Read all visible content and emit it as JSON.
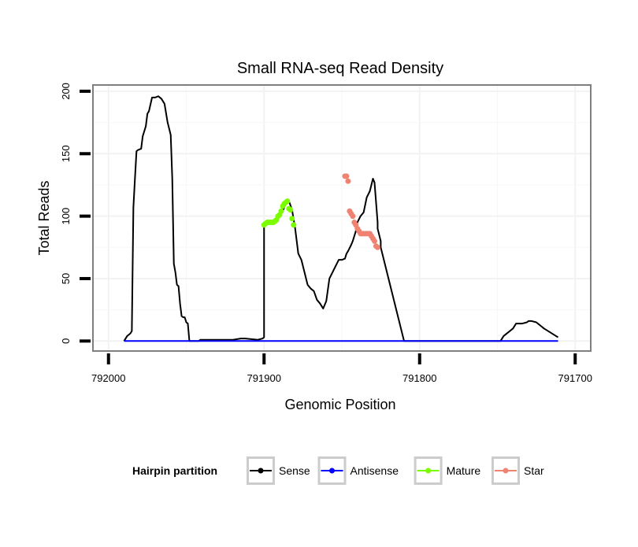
{
  "chart_data": {
    "type": "line",
    "title": "Small RNA-seq Read Density",
    "xlabel": "Genomic Position",
    "ylabel": "Total Reads",
    "xlim": [
      792010,
      791690
    ],
    "ylim": [
      -8,
      205
    ],
    "x_reversed": true,
    "x_ticks": [
      792000,
      791900,
      791800,
      791700
    ],
    "x_tick_labels": [
      "792000",
      "791900",
      "791800",
      "791700"
    ],
    "y_ticks": [
      0,
      50,
      100,
      150,
      200
    ],
    "y_tick_labels": [
      "0",
      "50",
      "100",
      "150",
      "200"
    ],
    "grid": true,
    "legend": {
      "title": "Hairpin partition",
      "position": "bottom",
      "entries": [
        {
          "name": "Sense",
          "color": "#000000"
        },
        {
          "name": "Antisense",
          "color": "#0000ff"
        },
        {
          "name": "Mature",
          "color": "#7cfc00"
        },
        {
          "name": "Star",
          "color": "#f08272"
        }
      ]
    },
    "series": [
      {
        "name": "Sense",
        "color": "#000000",
        "style": "line",
        "x": [
          791990,
          791988,
          791986,
          791985,
          791984,
          791983,
          791982,
          791981,
          791979,
          791978,
          791976,
          791975,
          791974,
          791972,
          791970,
          791968,
          791966,
          791964,
          791962,
          791961,
          791960,
          791959,
          791958,
          791957,
          791956,
          791955,
          791954,
          791953,
          791952,
          791951,
          791950,
          791949,
          791948,
          791946,
          791944,
          791942,
          791941,
          791940,
          791938,
          791936,
          791934,
          791932,
          791920,
          791915,
          791912,
          791904,
          791901,
          791900,
          791900,
          791898,
          791896,
          791892,
          791890,
          791888,
          791886,
          791884,
          791882,
          791880,
          791878,
          791876,
          791874,
          791872,
          791870,
          791868,
          791866,
          791864,
          791862,
          791860,
          791858,
          791856,
          791854,
          791852,
          791850,
          791848,
          791847,
          791846,
          791844,
          791843,
          791841,
          791840,
          791838,
          791836,
          791834,
          791832,
          791830,
          791829,
          791827,
          791827,
          791825,
          791825,
          791810,
          791790,
          791770,
          791760,
          791755,
          791754,
          791752,
          791750,
          791748,
          791746,
          791740,
          791738,
          791734,
          791731,
          791730,
          791728,
          791725,
          791722,
          791720,
          791711
        ],
        "y": [
          0,
          4,
          6,
          8,
          107,
          130,
          152,
          153,
          154,
          164,
          172,
          182,
          184,
          195,
          195,
          196,
          194,
          190,
          175,
          170,
          165,
          130,
          62,
          55,
          45,
          44,
          30,
          20,
          19,
          19,
          15,
          14,
          0,
          0,
          0,
          0,
          1,
          1,
          1,
          1,
          1,
          1,
          1,
          2,
          2,
          1,
          2,
          3,
          93,
          95,
          95,
          96,
          100,
          104,
          110,
          112,
          105,
          90,
          70,
          65,
          55,
          45,
          42,
          40,
          33,
          30,
          26,
          32,
          50,
          55,
          60,
          65,
          65,
          66,
          70,
          72,
          77,
          80,
          88,
          95,
          100,
          103,
          115,
          120,
          130,
          127,
          95,
          90,
          80,
          75,
          0,
          0,
          0,
          0,
          0,
          0,
          0,
          0,
          0,
          4,
          10,
          14,
          14,
          15,
          16,
          16,
          15,
          12,
          10,
          3
        ]
      },
      {
        "name": "Antisense",
        "color": "#0000ff",
        "style": "line",
        "x": [
          791990,
          791711
        ],
        "y": [
          0,
          0
        ]
      },
      {
        "name": "Mature",
        "color": "#7cfc00",
        "style": "points",
        "x": [
          791900,
          791899,
          791898,
          791897,
          791896,
          791895,
          791894,
          791893,
          791892,
          791891,
          791890,
          791889,
          791888,
          791887,
          791886,
          791885,
          791884,
          791883,
          791882,
          791881
        ],
        "y": [
          93,
          94,
          95,
          95,
          95,
          95,
          95,
          96,
          97,
          100,
          101,
          104,
          108,
          110,
          111,
          112,
          106,
          105,
          98,
          93
        ]
      },
      {
        "name": "Star",
        "color": "#f08272",
        "style": "points",
        "x": [
          791848,
          791847,
          791846,
          791845,
          791844,
          791843,
          791842,
          791841,
          791840,
          791839,
          791838,
          791837,
          791836,
          791835,
          791834,
          791833,
          791832,
          791831,
          791830,
          791829,
          791828,
          791827
        ],
        "y": [
          132,
          132,
          128,
          104,
          102,
          100,
          95,
          93,
          90,
          88,
          86,
          86,
          86,
          86,
          86,
          86,
          86,
          84,
          82,
          80,
          76,
          75
        ]
      }
    ]
  }
}
